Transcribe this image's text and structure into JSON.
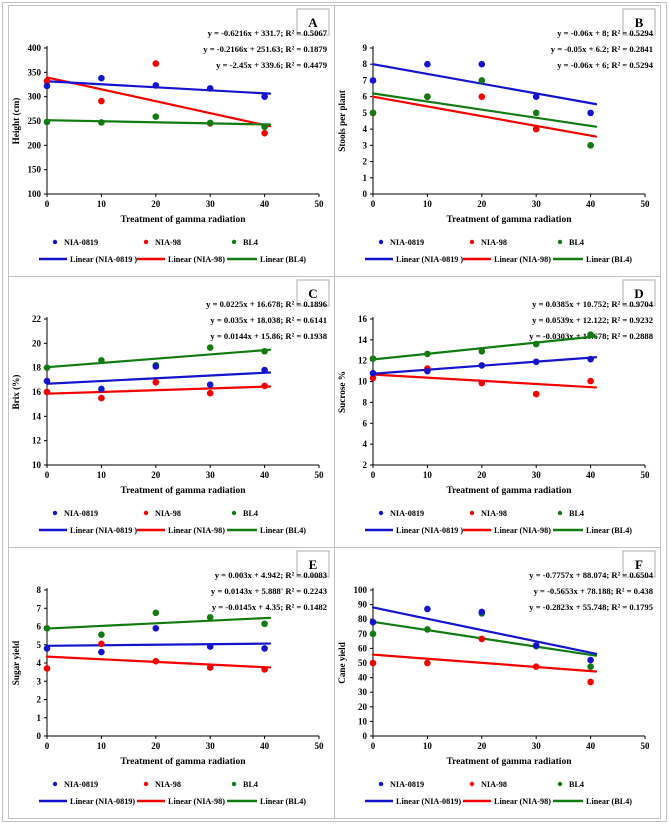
{
  "figure": {
    "x_axis_label": "Treatment of gamma radiation",
    "series_names": [
      "NIA-0819",
      "NIA-98",
      "BL4"
    ],
    "colors": {
      "NIA-0819": "#1414CD",
      "NIA-98": "#F40000",
      "BL4": "#117B11"
    }
  },
  "chart_data": [
    {
      "panel_label": "A",
      "type": "scatter",
      "ylabel": "Height (cm)",
      "xlabel": "Treatment of gamma radiation",
      "ylim": [
        100,
        400
      ],
      "ytick_step": 50,
      "xlim": [
        0,
        50
      ],
      "xtick_step": 10,
      "x": [
        0,
        10,
        20,
        30,
        40
      ],
      "equations": [
        {
          "series": "NIA-0819",
          "color": "#1414CD",
          "text": "y = -0.6216x + 331.7; R² = 0.5067"
        },
        {
          "series": "BL4",
          "color": "#117B11",
          "text": "y = -0.2166x + 251.63; R² = 0.1879"
        },
        {
          "series": "NIA-98",
          "color": "#F40000",
          "text": "y = -2.45x + 339.6; R² = 0.4479"
        }
      ],
      "series": [
        {
          "name": "NIA-0819",
          "color": "#1414CD",
          "values": [
            322,
            338,
            323,
            317,
            300
          ],
          "trend_slope": -0.6216,
          "trend_intercept": 331.7,
          "r2": 0.5067
        },
        {
          "name": "NIA-98",
          "color": "#F40000",
          "values": [
            332,
            291,
            368,
            245,
            225
          ],
          "trend_slope": -2.45,
          "trend_intercept": 339.6,
          "r2": 0.4479
        },
        {
          "name": "BL4",
          "color": "#117B11",
          "values": [
            248,
            247,
            259,
            246,
            238
          ],
          "trend_slope": -0.2166,
          "trend_intercept": 251.63,
          "r2": 0.1879
        }
      ],
      "legend": {
        "markers": [
          "NIA-0819",
          "NIA-98",
          "BL4"
        ],
        "lines": [
          "Linear (NIA-0819 )",
          "Linear (NIA-98)",
          "Linear (BL4)"
        ]
      }
    },
    {
      "panel_label": "B",
      "type": "scatter",
      "ylabel": "Stools per plant",
      "xlabel": "Treatment of gamma radiation",
      "ylim": [
        0,
        9
      ],
      "ytick_step": 1,
      "xlim": [
        0,
        50
      ],
      "xtick_step": 10,
      "x": [
        0,
        10,
        20,
        30,
        40
      ],
      "equations": [
        {
          "series": "NIA-0819",
          "color": "#1414CD",
          "text": "y = -0.06x + 8; R² = 0.5294"
        },
        {
          "series": "BL4",
          "color": "#117B11",
          "text": "y = -0.05x + 6.2; R² = 0.2841"
        },
        {
          "series": "NIA-98",
          "color": "#F40000",
          "text": "y = -0.06x + 6; R² = 0.5294"
        }
      ],
      "series": [
        {
          "name": "NIA-0819",
          "color": "#1414CD",
          "values": [
            7,
            8,
            8,
            6,
            5
          ],
          "trend_slope": -0.06,
          "trend_intercept": 8,
          "r2": 0.5294
        },
        {
          "name": "NIA-98",
          "color": "#F40000",
          "values": [
            5,
            6,
            6,
            4,
            3
          ],
          "trend_slope": -0.06,
          "trend_intercept": 6,
          "r2": 0.5294
        },
        {
          "name": "BL4",
          "color": "#117B11",
          "values": [
            5,
            6,
            7,
            5,
            3
          ],
          "trend_slope": -0.05,
          "trend_intercept": 6.2,
          "r2": 0.2841
        }
      ],
      "legend": {
        "markers": [
          "NIA-0819",
          "NIA-98",
          "BL4"
        ],
        "lines": [
          "Linear (NIA-0819 )",
          "Linear (NIA-98)",
          "Linear (BL4)"
        ]
      }
    },
    {
      "panel_label": "C",
      "type": "scatter",
      "ylabel": "Brix (%)",
      "xlabel": "Treatment of gamma radiation",
      "ylim": [
        10,
        22
      ],
      "ytick_step": 2,
      "xlim": [
        0,
        50
      ],
      "xtick_step": 10,
      "x": [
        0,
        10,
        20,
        30,
        40
      ],
      "equations": [
        {
          "series": "NIA-0819",
          "color": "#1414CD",
          "text": "y = 0.0225x + 16.678; R² = 0.1896"
        },
        {
          "series": "BL4",
          "color": "#117B11",
          "text": "y = 0.035x + 18.038; R² = 0.6141"
        },
        {
          "series": "NIA-98",
          "color": "#F40000",
          "text": "y = 0.0144x + 15.86; R² = 0.1938"
        }
      ],
      "series": [
        {
          "name": "NIA-0819",
          "color": "#1414CD",
          "values": [
            16.9,
            16.25,
            18.1,
            16.6,
            17.8
          ],
          "trend_slope": 0.0225,
          "trend_intercept": 16.678,
          "r2": 0.1896
        },
        {
          "name": "NIA-98",
          "color": "#F40000",
          "values": [
            16.0,
            15.5,
            16.8,
            15.9,
            16.5
          ],
          "trend_slope": 0.0144,
          "trend_intercept": 15.86,
          "r2": 0.1938
        },
        {
          "name": "BL4",
          "color": "#117B11",
          "values": [
            18.0,
            18.6,
            18.2,
            19.65,
            19.35
          ],
          "trend_slope": 0.035,
          "trend_intercept": 18.038,
          "r2": 0.6141
        }
      ],
      "legend": {
        "markers": [
          "NIA-0819",
          "NIA-98",
          "BL4"
        ],
        "lines": [
          "Linear (NIA-0819 )",
          "Linear (NIA-98)",
          "Linear (BL4)"
        ]
      }
    },
    {
      "panel_label": "D",
      "type": "scatter",
      "ylabel": "Sucrose %",
      "xlabel": "Treatment of gamma radiation",
      "ylim": [
        2,
        16
      ],
      "ytick_step": 2,
      "xlim": [
        0,
        50
      ],
      "xtick_step": 10,
      "x": [
        0,
        10,
        20,
        30,
        40
      ],
      "equations": [
        {
          "series": "NIA-0819",
          "color": "#1414CD",
          "text": "y = 0.0385x + 10.752; R² = 0.9704"
        },
        {
          "series": "BL4",
          "color": "#117B11",
          "text": "y = 0.0539x + 12.122; R² = 0.9232"
        },
        {
          "series": "NIA-98",
          "color": "#F40000",
          "text": "y = -0.0303x + 10.678; R² = 0.2888"
        }
      ],
      "series": [
        {
          "name": "NIA-0819",
          "color": "#1414CD",
          "values": [
            10.8,
            11.0,
            11.55,
            11.9,
            12.15
          ],
          "trend_slope": 0.0385,
          "trend_intercept": 10.752,
          "r2": 0.9704
        },
        {
          "name": "NIA-98",
          "color": "#F40000",
          "values": [
            10.35,
            11.25,
            9.85,
            8.8,
            10.05
          ],
          "trend_slope": -0.0303,
          "trend_intercept": 10.678,
          "r2": 0.2888
        },
        {
          "name": "BL4",
          "color": "#117B11",
          "values": [
            12.2,
            12.65,
            12.9,
            13.6,
            14.5
          ],
          "trend_slope": 0.0539,
          "trend_intercept": 12.122,
          "r2": 0.9232
        }
      ],
      "legend": {
        "markers": [
          "NIA-0819",
          "NIA-98",
          "BL4"
        ],
        "lines": [
          "Linear (NIA-0819 )",
          "Linear (NIA-98)",
          "Linear (BL4)"
        ]
      }
    },
    {
      "panel_label": "E",
      "type": "scatter",
      "ylabel": "Sugar yield",
      "xlabel": "Treatment of gamma radiation",
      "ylim": [
        0,
        8
      ],
      "ytick_step": 1,
      "xlim": [
        0,
        50
      ],
      "xtick_step": 10,
      "x": [
        0,
        10,
        20,
        30,
        40
      ],
      "equations": [
        {
          "series": "NIA-0819",
          "color": "#1414CD",
          "text": "y = 0.003x + 4.942; R² = 0.0083"
        },
        {
          "series": "BL4",
          "color": "#117B11",
          "text": "y = 0.0143x + 5.888' R² = 0.2243"
        },
        {
          "series": "NIA-98",
          "color": "#F40000",
          "text": "y = -0.0145x + 4.35; R² = 0.1482"
        }
      ],
      "series": [
        {
          "name": "NIA-0819",
          "color": "#1414CD",
          "values": [
            4.8,
            4.6,
            5.9,
            4.9,
            4.8
          ],
          "trend_slope": 0.003,
          "trend_intercept": 4.942,
          "r2": 0.0083
        },
        {
          "name": "NIA-98",
          "color": "#F40000",
          "values": [
            3.7,
            5.05,
            4.1,
            3.75,
            3.65
          ],
          "trend_slope": -0.0145,
          "trend_intercept": 4.35,
          "r2": 0.1482
        },
        {
          "name": "BL4",
          "color": "#117B11",
          "values": [
            5.9,
            5.55,
            6.75,
            6.5,
            6.15
          ],
          "trend_slope": 0.0143,
          "trend_intercept": 5.888,
          "r2": 0.2243
        }
      ],
      "legend": {
        "markers": [
          "NIA-0819",
          "NIA-98",
          "BL4"
        ],
        "lines": [
          "Linear (NIA-0819)",
          "Linear (NIA-98)",
          "Linear (BL4)"
        ]
      }
    },
    {
      "panel_label": "F",
      "type": "scatter",
      "ylabel": "Cane yield",
      "xlabel": "Treatment of gamma radiation",
      "ylim": [
        0,
        100
      ],
      "ytick_step": 10,
      "xlim": [
        0,
        50
      ],
      "xtick_step": 10,
      "x": [
        0,
        10,
        20,
        30,
        40
      ],
      "equations": [
        {
          "series": "NIA-0819",
          "color": "#1414CD",
          "text": "y = -0.7757x + 88.074; R² = 0.6504"
        },
        {
          "series": "BL4",
          "color": "#117B11",
          "text": "y = -0.5653x + 78.188; R² = 0.438"
        },
        {
          "series": "NIA-98",
          "color": "#F40000",
          "text": "y = -0.2823x + 55.748; R² = 0.1795"
        }
      ],
      "series": [
        {
          "name": "NIA-0819",
          "color": "#1414CD",
          "values": [
            78,
            87,
            85,
            62,
            52
          ],
          "trend_slope": -0.7757,
          "trend_intercept": 88.074,
          "r2": 0.6504
        },
        {
          "name": "NIA-98",
          "color": "#F40000",
          "values": [
            50,
            50,
            66.5,
            47.5,
            37
          ],
          "trend_slope": -0.2823,
          "trend_intercept": 55.748,
          "r2": 0.1795
        },
        {
          "name": "BL4",
          "color": "#117B11",
          "values": [
            70,
            73,
            84,
            61.5,
            47.5
          ],
          "trend_slope": -0.5653,
          "trend_intercept": 78.188,
          "r2": 0.438
        }
      ],
      "legend": {
        "markers": [
          "NIA-0819",
          "NIA-98",
          "BL4"
        ],
        "lines": [
          "Linear (NIA-0819)",
          "Linear (NIA-98)",
          "Linear (BL4)"
        ]
      }
    }
  ]
}
